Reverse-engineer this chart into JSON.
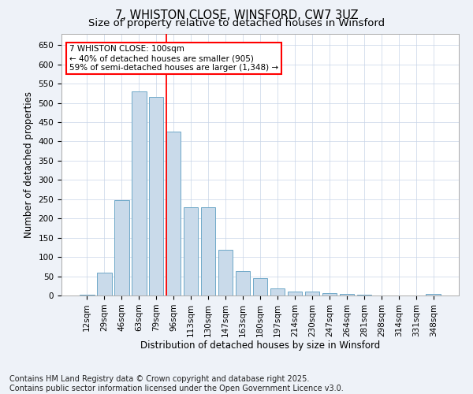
{
  "title": "7, WHISTON CLOSE, WINSFORD, CW7 3UZ",
  "subtitle": "Size of property relative to detached houses in Winsford",
  "xlabel": "Distribution of detached houses by size in Winsford",
  "ylabel": "Number of detached properties",
  "categories": [
    "12sqm",
    "29sqm",
    "46sqm",
    "63sqm",
    "79sqm",
    "96sqm",
    "113sqm",
    "130sqm",
    "147sqm",
    "163sqm",
    "180sqm",
    "197sqm",
    "214sqm",
    "230sqm",
    "247sqm",
    "264sqm",
    "281sqm",
    "298sqm",
    "314sqm",
    "331sqm",
    "348sqm"
  ],
  "values": [
    2,
    60,
    248,
    530,
    515,
    425,
    230,
    230,
    118,
    63,
    45,
    18,
    11,
    10,
    7,
    5,
    3,
    1,
    1,
    0,
    5
  ],
  "bar_color": "#c9daea",
  "bar_edge_color": "#6fa8c8",
  "vline_x_index": 5,
  "vline_color": "red",
  "annotation_text": "7 WHISTON CLOSE: 100sqm\n← 40% of detached houses are smaller (905)\n59% of semi-detached houses are larger (1,348) →",
  "annotation_box_color": "white",
  "annotation_box_edge": "red",
  "ylim": [
    0,
    680
  ],
  "yticks": [
    0,
    50,
    100,
    150,
    200,
    250,
    300,
    350,
    400,
    450,
    500,
    550,
    600,
    650
  ],
  "footer": "Contains HM Land Registry data © Crown copyright and database right 2025.\nContains public sector information licensed under the Open Government Licence v3.0.",
  "bg_color": "#eef2f8",
  "plot_bg_color": "#ffffff",
  "title_fontsize": 10.5,
  "subtitle_fontsize": 9.5,
  "xlabel_fontsize": 8.5,
  "ylabel_fontsize": 8.5,
  "footer_fontsize": 7,
  "tick_fontsize": 7.5,
  "annotation_fontsize": 7.5
}
